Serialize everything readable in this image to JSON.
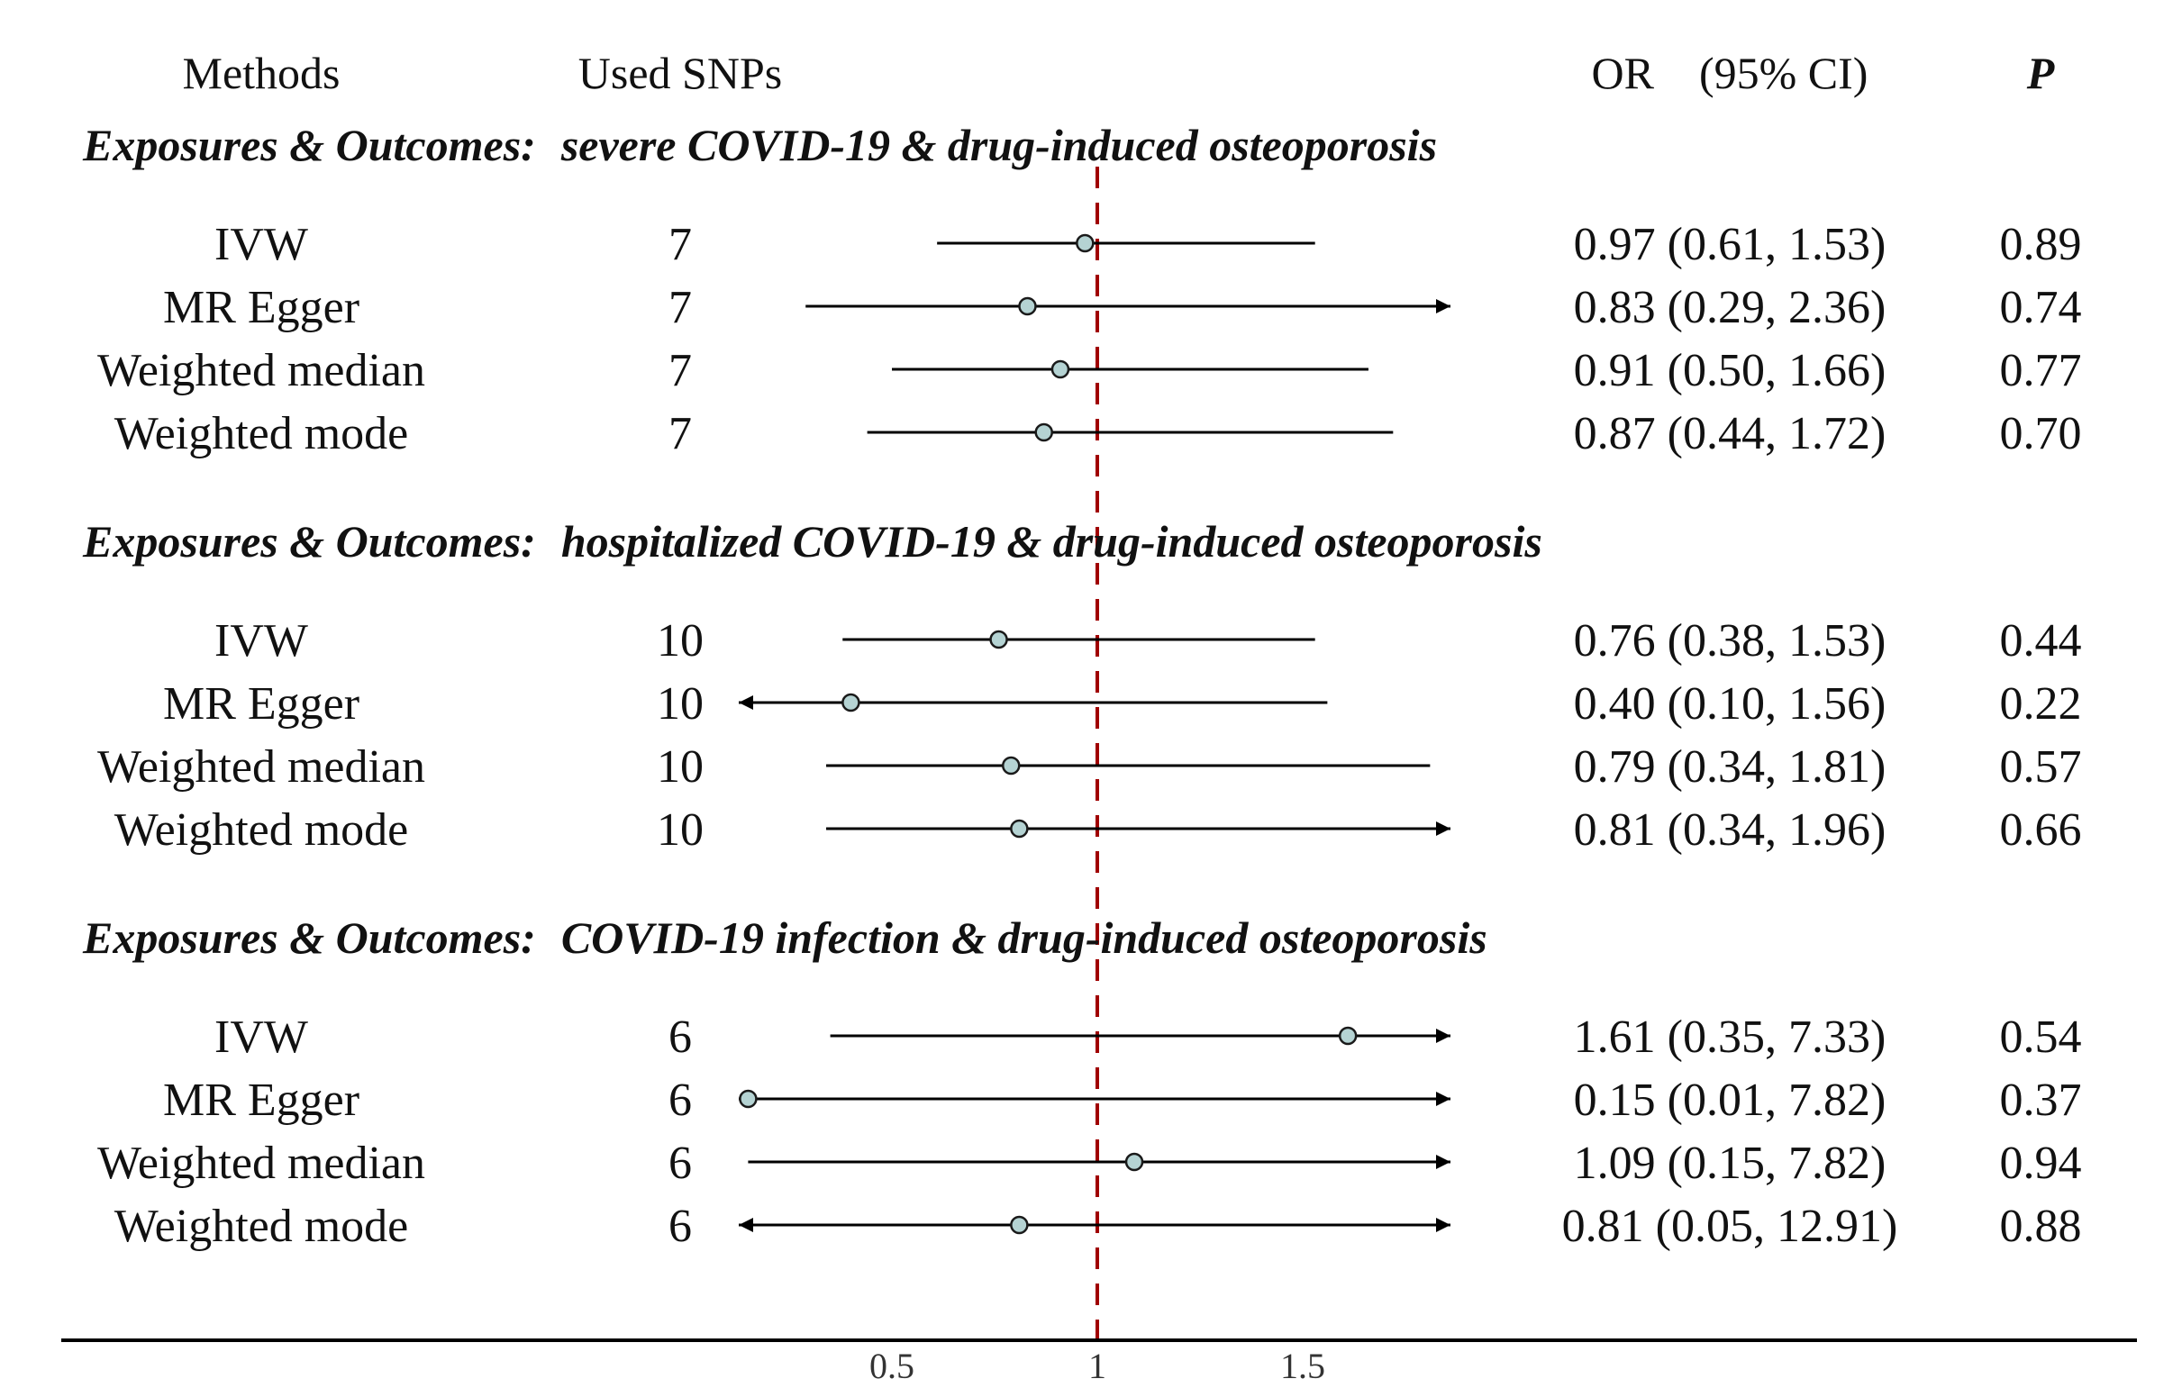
{
  "headers": {
    "methods": "Methods",
    "snps": "Used SNPs",
    "or_ci": "OR　(95% CI)",
    "p": "P"
  },
  "chart_data": {
    "type": "forest",
    "reference_line": 1,
    "xlim": [
      0.01,
      1.85
    ],
    "x_ticks": [
      {
        "value": 0.5,
        "label": "0.5"
      },
      {
        "value": 1,
        "label": "1"
      },
      {
        "value": 1.5,
        "label": "1.5"
      }
    ],
    "colors": {
      "point_fill": "#b5d3d3",
      "reference_line": "#a00000",
      "line": "#000000"
    },
    "groups": [
      {
        "prefix": "Exposures & Outcomes:",
        "title": "severe COVID-19 & drug-induced osteoporosis",
        "rows": [
          {
            "method": "IVW",
            "snps": "7",
            "or": 0.97,
            "lower": 0.61,
            "upper": 1.53,
            "ci_text": "0.97 (0.61, 1.53)",
            "p": "0.89"
          },
          {
            "method": "MR Egger",
            "snps": "7",
            "or": 0.83,
            "lower": 0.29,
            "upper": 2.36,
            "ci_text": "0.83 (0.29, 2.36)",
            "p": "0.74"
          },
          {
            "method": "Weighted median",
            "snps": "7",
            "or": 0.91,
            "lower": 0.5,
            "upper": 1.66,
            "ci_text": "0.91 (0.50, 1.66)",
            "p": "0.77"
          },
          {
            "method": "Weighted mode",
            "snps": "7",
            "or": 0.87,
            "lower": 0.44,
            "upper": 1.72,
            "ci_text": "0.87 (0.44, 1.72)",
            "p": "0.70"
          }
        ]
      },
      {
        "prefix": "Exposures & Outcomes:",
        "title": "hospitalized COVID-19 & drug-induced osteoporosis",
        "rows": [
          {
            "method": "IVW",
            "snps": "10",
            "or": 0.76,
            "lower": 0.38,
            "upper": 1.53,
            "ci_text": "0.76 (0.38, 1.53)",
            "p": "0.44"
          },
          {
            "method": "MR Egger",
            "snps": "10",
            "or": 0.4,
            "lower": 0.1,
            "upper": 1.56,
            "ci_text": "0.40 (0.10, 1.56)",
            "p": "0.22"
          },
          {
            "method": "Weighted median",
            "snps": "10",
            "or": 0.79,
            "lower": 0.34,
            "upper": 1.81,
            "ci_text": "0.79 (0.34, 1.81)",
            "p": "0.57"
          },
          {
            "method": "Weighted mode",
            "snps": "10",
            "or": 0.81,
            "lower": 0.34,
            "upper": 1.96,
            "ci_text": "0.81 (0.34, 1.96)",
            "p": "0.66"
          }
        ]
      },
      {
        "prefix": "Exposures & Outcomes:",
        "title": "COVID-19 infection & drug-induced osteoporosis",
        "rows": [
          {
            "method": "IVW",
            "snps": "6",
            "or": 1.61,
            "lower": 0.35,
            "upper": 7.33,
            "ci_text": "1.61 (0.35, 7.33)",
            "p": "0.54"
          },
          {
            "method": "MR Egger",
            "snps": "6",
            "or": 0.15,
            "lower": 0.01,
            "upper": 7.82,
            "ci_text": "0.15 (0.01, 7.82)",
            "p": "0.37"
          },
          {
            "method": "Weighted median",
            "snps": "6",
            "or": 1.09,
            "lower": 0.15,
            "upper": 7.82,
            "ci_text": "1.09 (0.15, 7.82)",
            "p": "0.94"
          },
          {
            "method": "Weighted mode",
            "snps": "6",
            "or": 0.81,
            "lower": 0.05,
            "upper": 12.91,
            "ci_text": "0.81 (0.05, 12.91)",
            "p": "0.88"
          }
        ]
      }
    ]
  }
}
